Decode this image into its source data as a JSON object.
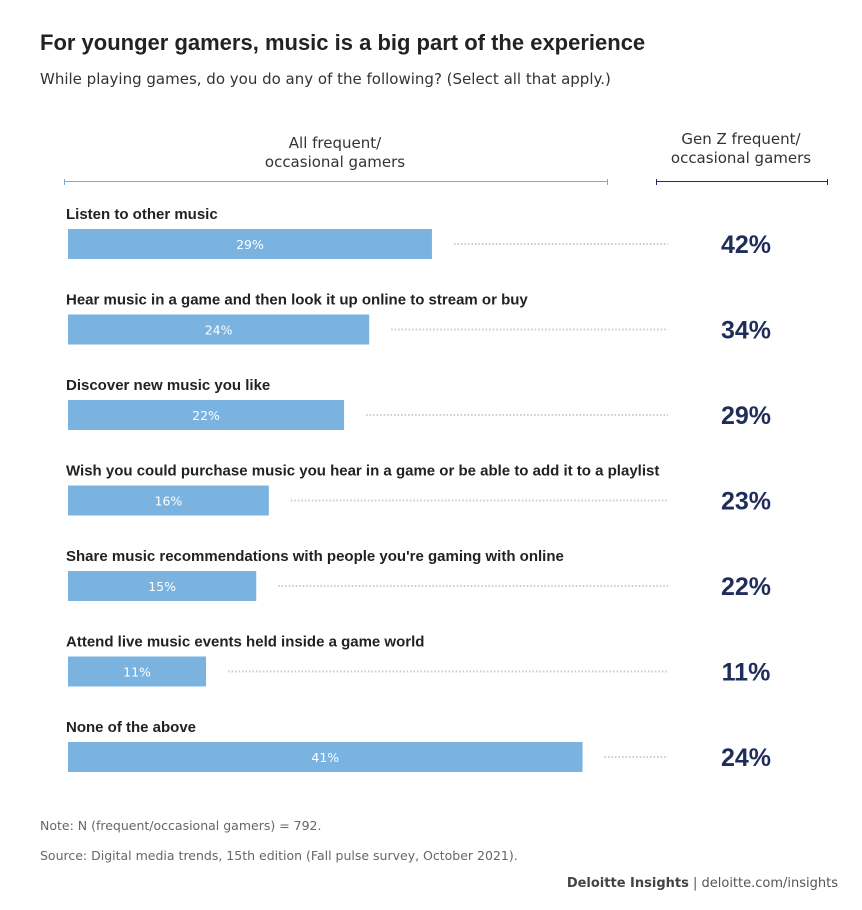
{
  "header": {
    "title": "For younger gamers, music is a big part of the experience",
    "subtitle": "While playing games, do you do any of the following? (Select all that apply.)"
  },
  "columns": {
    "left_line1": "All frequent/",
    "left_line2": "occasional gamers",
    "right_line1": "Gen Z frequent/",
    "right_line2": "occasional gamers"
  },
  "footer": {
    "note": "Note: N (frequent/occasional gamers) = 792.",
    "source": "Source: Digital media trends, 15th edition (Fall pulse survey, October 2021).",
    "brand": "Deloitte Insights",
    "separator": " | ",
    "url": "deloitte.com/insights"
  },
  "colors": {
    "bar": "#7ab3e0",
    "bar_label": "#ffffff",
    "genz_value": "#1f2d5a",
    "dots": "#c8cdd3"
  },
  "chart_data": {
    "type": "bar",
    "orientation": "horizontal",
    "categories": [
      "Listen to other music",
      "Hear music in a game and then look it up online to stream or buy",
      "Discover new music you like",
      "Wish you could purchase music you hear in a game or be able to add it to a playlist",
      "Share music recommendations with people you're gaming with online",
      "Attend live music events held inside a game world",
      "None of the above"
    ],
    "series": [
      {
        "name": "All frequent/occasional gamers",
        "values": [
          29,
          24,
          22,
          16,
          15,
          11,
          41
        ],
        "labels": [
          "29%",
          "24%",
          "22%",
          "16%",
          "15%",
          "11%",
          "41%"
        ]
      },
      {
        "name": "Gen Z frequent/occasional gamers",
        "values": [
          42,
          34,
          29,
          23,
          22,
          11,
          24
        ],
        "labels": [
          "42%",
          "34%",
          "29%",
          "23%",
          "22%",
          "11%",
          "24%"
        ]
      }
    ],
    "unit": "%",
    "xlim": [
      0,
      43
    ]
  }
}
